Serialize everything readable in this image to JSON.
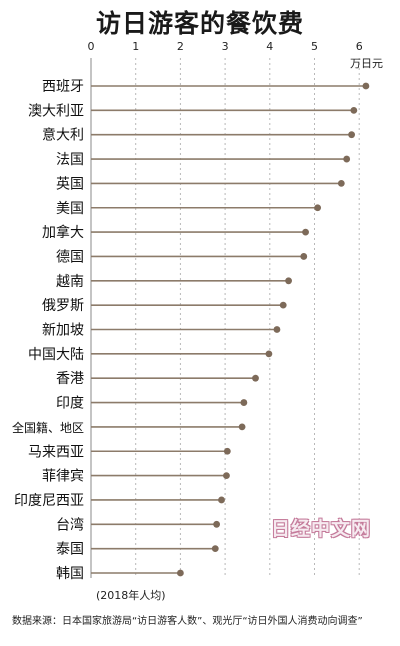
{
  "chart_data": {
    "type": "lollipop",
    "title": "访日游客的餐饮费",
    "unit": "万日元",
    "xlim": [
      0,
      6.2
    ],
    "ticks": [
      0,
      1,
      2,
      3,
      4,
      5,
      6
    ],
    "grid": true,
    "categories": [
      "西班牙",
      "澳大利亚",
      "意大利",
      "法国",
      "英国",
      "美国",
      "加拿大",
      "德国",
      "越南",
      "俄罗斯",
      "新加坡",
      "中国大陆",
      "香港",
      "印度",
      "全国籍、地区",
      "马来西亚",
      "菲律宾",
      "印度尼西亚",
      "台湾",
      "泰国",
      "韩国"
    ],
    "values": [
      6.15,
      5.88,
      5.83,
      5.72,
      5.6,
      5.07,
      4.8,
      4.76,
      4.42,
      4.3,
      4.16,
      3.98,
      3.68,
      3.42,
      3.38,
      3.05,
      3.03,
      2.92,
      2.81,
      2.78,
      2.0
    ]
  },
  "note": "(2018年人均)",
  "source": "数据来源：日本国家旅游局“访日游客人数”、观光厅“访日外国人消费动向调查”",
  "watermark": "日经中文网",
  "colors": {
    "stem": "#8c7b6a",
    "dot": "#7d6a59",
    "grid": "#b8b8b8"
  }
}
